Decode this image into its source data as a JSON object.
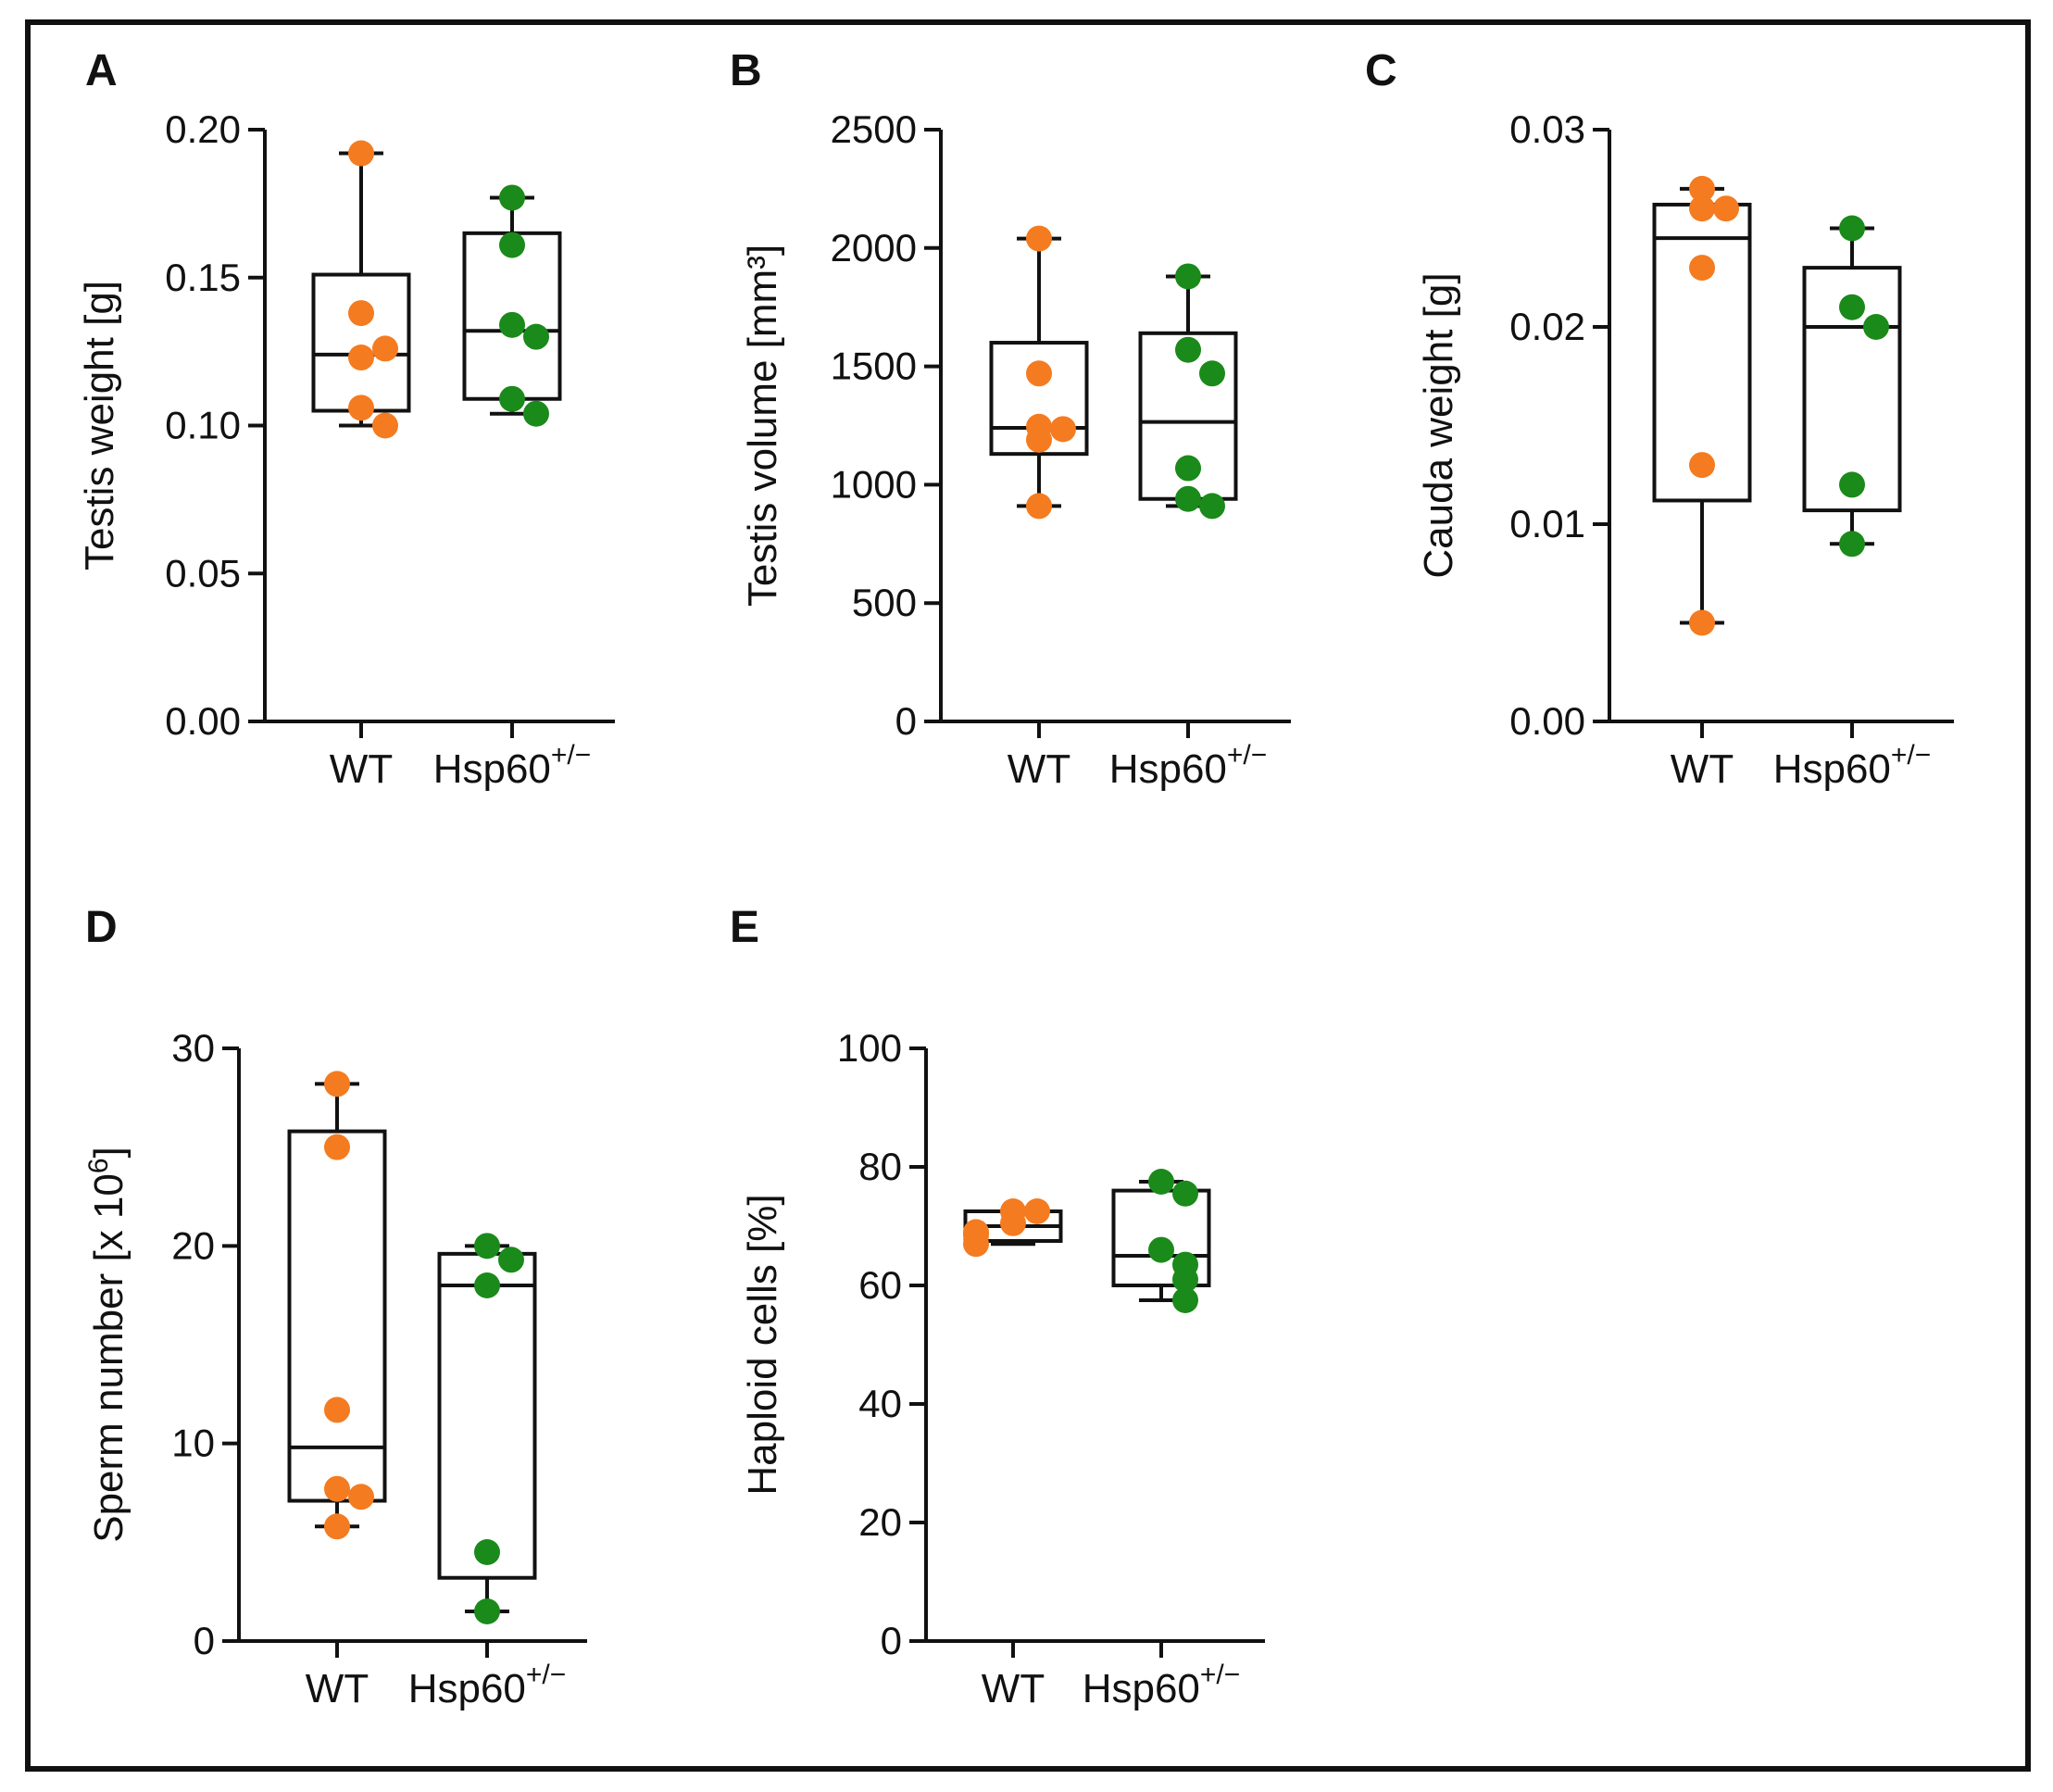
{
  "colors": {
    "wt": "#f47b20",
    "het": "#1a8a1a",
    "axis": "#111111",
    "frame": "#111111"
  },
  "chart_data": [
    {
      "type": "box-scatter",
      "panel": "A",
      "ylabel": "Testis weight [g]",
      "ylim": [
        0,
        0.2
      ],
      "yticks": [
        "0.00",
        "0.05",
        "0.10",
        "0.15",
        "0.20"
      ],
      "categories": [
        "WT",
        "Hsp60"
      ],
      "category_sup": [
        "",
        "+/−"
      ],
      "series": [
        {
          "name": "WT",
          "points": [
            0.192,
            0.138,
            0.123,
            0.126,
            0.106,
            0.1
          ],
          "box": {
            "min": 0.1,
            "q1": 0.105,
            "median": 0.124,
            "q3": 0.151,
            "max": 0.192
          }
        },
        {
          "name": "Hsp60+/-",
          "points": [
            0.177,
            0.161,
            0.134,
            0.13,
            0.109,
            0.104
          ],
          "box": {
            "min": 0.104,
            "q1": 0.109,
            "median": 0.132,
            "q3": 0.165,
            "max": 0.177
          }
        }
      ]
    },
    {
      "type": "box-scatter",
      "panel": "B",
      "ylabel": "Testis volume [mm³]",
      "ylim": [
        0,
        2500
      ],
      "yticks": [
        "0",
        "500",
        "1000",
        "1500",
        "2000",
        "2500"
      ],
      "categories": [
        "WT",
        "Hsp60"
      ],
      "category_sup": [
        "",
        "+/−"
      ],
      "series": [
        {
          "name": "WT",
          "points": [
            2040,
            1470,
            1245,
            1235,
            1190,
            910
          ],
          "box": {
            "min": 910,
            "q1": 1130,
            "median": 1240,
            "q3": 1600,
            "max": 2040
          }
        },
        {
          "name": "Hsp60+/-",
          "points": [
            1880,
            1570,
            1470,
            1070,
            940,
            910
          ],
          "box": {
            "min": 910,
            "q1": 940,
            "median": 1265,
            "q3": 1640,
            "max": 1880
          }
        }
      ]
    },
    {
      "type": "box-scatter",
      "panel": "C",
      "ylabel": "Cauda weight [g]",
      "ylim": [
        0,
        0.03
      ],
      "yticks": [
        "0.00",
        "0.01",
        "0.02",
        "0.03"
      ],
      "categories": [
        "WT",
        "Hsp60"
      ],
      "category_sup": [
        "",
        "+/−"
      ],
      "series": [
        {
          "name": "WT",
          "points": [
            0.027,
            0.026,
            0.026,
            0.023,
            0.013,
            0.005
          ],
          "box": {
            "min": 0.005,
            "q1": 0.0112,
            "median": 0.0245,
            "q3": 0.0262,
            "max": 0.027
          }
        },
        {
          "name": "Hsp60+/-",
          "points": [
            0.025,
            0.021,
            0.02,
            0.012,
            0.009
          ],
          "box": {
            "min": 0.009,
            "q1": 0.0107,
            "median": 0.02,
            "q3": 0.023,
            "max": 0.025
          }
        }
      ]
    },
    {
      "type": "box-scatter",
      "panel": "D",
      "ylabel": "Sperm number [x 10",
      "ylabel_sup": "6",
      "ylabel_end": "]",
      "ylim": [
        0,
        30
      ],
      "yticks": [
        "0",
        "10",
        "20",
        "30"
      ],
      "categories": [
        "WT",
        "Hsp60"
      ],
      "category_sup": [
        "",
        "+/−"
      ],
      "series": [
        {
          "name": "WT",
          "points": [
            28.2,
            25.0,
            11.7,
            7.7,
            7.3,
            5.8
          ],
          "box": {
            "min": 5.8,
            "q1": 7.1,
            "median": 9.8,
            "q3": 25.8,
            "max": 28.2
          }
        },
        {
          "name": "Hsp60+/-",
          "points": [
            20.0,
            19.3,
            18.0,
            4.5,
            1.5
          ],
          "box": {
            "min": 1.5,
            "q1": 3.2,
            "median": 18.0,
            "q3": 19.6,
            "max": 20.0
          }
        }
      ]
    },
    {
      "type": "box-scatter",
      "panel": "E",
      "ylabel": "Haploid cells [%]",
      "ylim": [
        0,
        100
      ],
      "yticks": [
        "0",
        "20",
        "40",
        "60",
        "80",
        "100"
      ],
      "categories": [
        "WT",
        "Hsp60"
      ],
      "category_sup": [
        "",
        "+/−"
      ],
      "series": [
        {
          "name": "WT",
          "points": [
            72.5,
            72.5,
            70.5,
            69.0,
            68.5,
            67.0
          ],
          "box": {
            "min": 67.0,
            "q1": 67.5,
            "median": 70.0,
            "q3": 72.5,
            "max": 72.5
          }
        },
        {
          "name": "Hsp60+/-",
          "points": [
            77.5,
            75.5,
            66.0,
            63.5,
            61.0,
            57.5
          ],
          "box": {
            "min": 57.5,
            "q1": 60.0,
            "median": 65.0,
            "q3": 76.0,
            "max": 77.5
          }
        }
      ]
    }
  ]
}
